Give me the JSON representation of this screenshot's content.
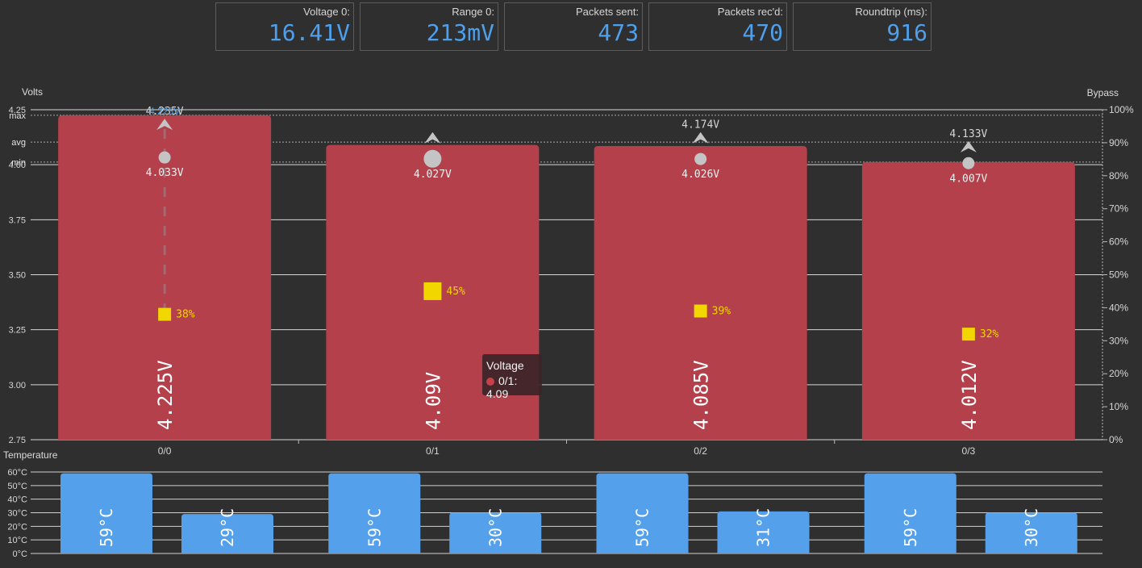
{
  "stats": [
    {
      "label": "Voltage 0:",
      "value": "16.41V"
    },
    {
      "label": "Range 0:",
      "value": "213mV"
    },
    {
      "label": "Packets sent:",
      "value": "473"
    },
    {
      "label": "Packets rec'd:",
      "value": "470"
    },
    {
      "label": "Roundtrip (ms):",
      "value": "916"
    }
  ],
  "chart_data": [
    {
      "type": "bar",
      "title": "",
      "ylabel": "Volts",
      "y2label": "Bypass",
      "ylim": [
        2.75,
        4.25
      ],
      "y2lim": [
        0,
        100
      ],
      "yticks": [
        "2.75",
        "3.00",
        "3.25",
        "3.50",
        "3.75",
        "4.00",
        "4.25"
      ],
      "y2ticks": [
        "0%",
        "10%",
        "20%",
        "30%",
        "40%",
        "50%",
        "60%",
        "70%",
        "80%",
        "90%",
        "100%"
      ],
      "reference_lines": [
        {
          "label": "max",
          "value": 4.225
        },
        {
          "label": "avg",
          "value": 4.103
        },
        {
          "label": "min",
          "value": 4.012
        }
      ],
      "categories": [
        "0/0",
        "0/1",
        "0/2",
        "0/3"
      ],
      "series": [
        {
          "name": "Voltage",
          "values": [
            4.225,
            4.09,
            4.085,
            4.012
          ],
          "labels": [
            "4.225V",
            "4.09V",
            "4.085V",
            "4.012V"
          ],
          "color": "#b3404a"
        },
        {
          "values": [
            4.033,
            4.027,
            4.026,
            4.007
          ],
          "labels": [
            "4.033V",
            "4.027V",
            "4.026V",
            "4.007V"
          ],
          "color": "#c4c4c4"
        },
        {
          "values": [
            4.235,
            4.174,
            4.174,
            4.133
          ],
          "labels": [
            "4.235V",
            "",
            "4.174V",
            "4.133V"
          ],
          "color": "#c4c4c4"
        },
        {
          "values": [
            38,
            45,
            39,
            32
          ],
          "labels": [
            "38%",
            "45%",
            "39%",
            "32%"
          ],
          "axis": "y2",
          "color": "#f2d600"
        }
      ],
      "overlap_label": "4.225V"
    },
    {
      "type": "bar",
      "title": "",
      "ylabel": "Temperature",
      "ylim": [
        0,
        60
      ],
      "yticks": [
        "0°C",
        "10°C",
        "20°C",
        "30°C",
        "40°C",
        "50°C",
        "60°C"
      ],
      "categories": [
        "0/0",
        "0/1",
        "0/2",
        "0/3"
      ],
      "series": [
        {
          "values": [
            59,
            59,
            59,
            59
          ],
          "labels": [
            "59°C",
            "59°C",
            "59°C",
            "59°C"
          ],
          "color": "#55a0ea"
        },
        {
          "values": [
            29,
            30,
            31,
            30
          ],
          "labels": [
            "29°C",
            "30°C",
            "31°C",
            "30°C"
          ],
          "color": "#55a0ea"
        }
      ]
    }
  ],
  "tooltip": {
    "title": "Voltage",
    "row": "0/1: 4.09"
  }
}
